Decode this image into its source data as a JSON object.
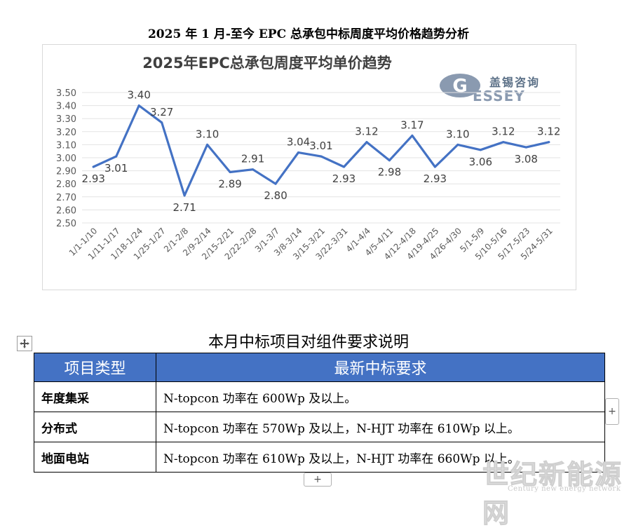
{
  "document": {
    "title": "2025 年 1 月-至今 EPC 总承包中标周度平均价格趋势分析"
  },
  "logo": {
    "cn": "盖锡咨询",
    "en": "ESSEY"
  },
  "chart_data": {
    "type": "line",
    "title": "2025年EPC总承包周度平均单价趋势",
    "xlabel": "",
    "ylabel": "",
    "ylim": [
      2.5,
      3.5
    ],
    "yticks": [
      "3.50",
      "3.40",
      "3.30",
      "3.20",
      "3.10",
      "3.00",
      "2.90",
      "2.80",
      "2.70",
      "2.60",
      "2.50"
    ],
    "grid": true,
    "categories": [
      "1/1-1/10",
      "1/11-1/17",
      "1/18-1/24",
      "1/25-1/27",
      "2/1-2/8",
      "2/9-2/14",
      "2/15-2/21",
      "2/22-2/28",
      "3/1-3/7",
      "3/8-3/14",
      "3/15-3/21",
      "3/22-3/31",
      "4/1-4/4",
      "4/5-4/11",
      "4/12-4/18",
      "4/19-4/25",
      "4/26-4/30",
      "5/1-5/9",
      "5/10-5/16",
      "5/17-5/23",
      "5/24-5/31"
    ],
    "values": [
      2.93,
      3.01,
      3.4,
      3.27,
      2.71,
      3.1,
      2.89,
      2.91,
      2.8,
      3.04,
      3.01,
      2.93,
      3.12,
      2.98,
      3.17,
      2.93,
      3.1,
      3.06,
      3.12,
      3.08,
      3.12
    ],
    "labels": [
      "2.93",
      "3.01",
      "3.40",
      "3.27",
      "2.71",
      "3.10",
      "2.89",
      "2.91",
      "2.80",
      "3.04",
      "3.01",
      "2.93",
      "3.12",
      "2.98",
      "3.17",
      "2.93",
      "3.10",
      "3.06",
      "3.12",
      "3.08",
      "3.12"
    ],
    "color": "#4472c4"
  },
  "table": {
    "caption": "本月中标项目对组件要求说明",
    "headers": [
      "项目类型",
      "最新中标要求"
    ],
    "rows": [
      {
        "type": "年度集采",
        "req": "N-topcon 功率在 600Wp 及以上。"
      },
      {
        "type": "分布式",
        "req": "N-topcon 功率在 570Wp 及以上，N-HJT 功率在 610Wp 以上。"
      },
      {
        "type": "地面电站",
        "req": "N-topcon 功率在 610Wp 及以上，N-HJT 功率在 660Wp 以上。"
      }
    ]
  },
  "controls": {
    "side_plus": "+",
    "bottom_plus": "+"
  },
  "watermark": {
    "big": "世纪新能源网",
    "small": "Century new energy network"
  }
}
